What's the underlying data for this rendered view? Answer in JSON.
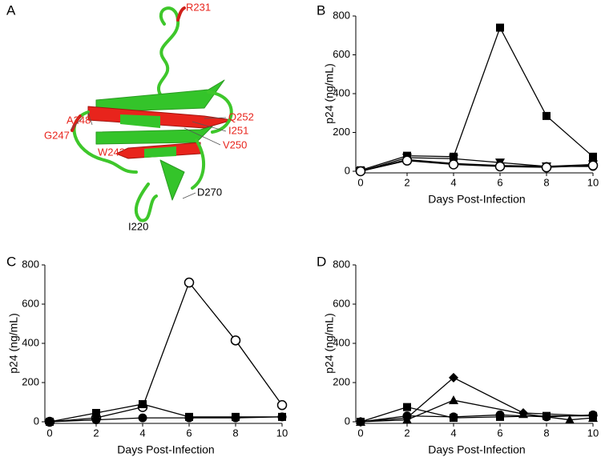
{
  "structure": {
    "panel_label": "A",
    "labels": [
      {
        "text": "R231",
        "color": "#e8241c"
      },
      {
        "text": "A248",
        "color": "#e8241c"
      },
      {
        "text": "G247",
        "color": "#e8241c"
      },
      {
        "text": "Q252",
        "color": "#e8241c"
      },
      {
        "text": "I251",
        "color": "#e8241c"
      },
      {
        "text": "W243",
        "color": "#e8241c"
      },
      {
        "text": "V250",
        "color": "#e8241c"
      },
      {
        "text": "D270",
        "color": "#000000"
      },
      {
        "text": "I220",
        "color": "#000000"
      }
    ]
  },
  "chart_data": [
    {
      "type": "line",
      "panel_label": "B",
      "xlabel": "Days Post-Infection",
      "ylabel": "p24 (ng/mL)",
      "xlim": [
        0,
        10
      ],
      "xticks": [
        0,
        2,
        4,
        6,
        8,
        10
      ],
      "ylim": [
        0,
        800
      ],
      "yticks": [
        0,
        200,
        400,
        600,
        800
      ],
      "series": [
        {
          "marker": "square",
          "color": "#000000",
          "x": [
            0,
            2,
            4,
            6,
            8,
            10
          ],
          "values": [
            5,
            80,
            75,
            740,
            285,
            75
          ]
        },
        {
          "marker": "triangle-down",
          "color": "#000000",
          "x": [
            0,
            2,
            4,
            6,
            8,
            10
          ],
          "values": [
            0,
            70,
            65,
            45,
            25,
            35
          ]
        },
        {
          "marker": "filled-circle",
          "color": "#000000",
          "x": [
            0,
            2,
            4,
            6,
            8,
            10
          ],
          "values": [
            0,
            60,
            40,
            30,
            25,
            25
          ]
        },
        {
          "marker": "open-circle",
          "color": "#000000",
          "x": [
            0,
            2,
            4,
            6,
            8,
            10
          ],
          "values": [
            0,
            55,
            35,
            25,
            20,
            30
          ]
        }
      ]
    },
    {
      "type": "line",
      "panel_label": "C",
      "xlabel": "Days Post-Infection",
      "ylabel": "p24 (ng/mL)",
      "xlim": [
        0,
        10
      ],
      "xticks": [
        0,
        2,
        4,
        6,
        8,
        10
      ],
      "ylim": [
        0,
        800
      ],
      "yticks": [
        0,
        200,
        400,
        600,
        800
      ],
      "series": [
        {
          "marker": "open-circle",
          "color": "#000000",
          "x": [
            0,
            2,
            4,
            6,
            8,
            10
          ],
          "values": [
            0,
            20,
            75,
            710,
            415,
            85
          ]
        },
        {
          "marker": "square",
          "color": "#000000",
          "x": [
            0,
            2,
            4,
            6,
            8,
            10
          ],
          "values": [
            0,
            45,
            90,
            25,
            25,
            25
          ]
        },
        {
          "marker": "filled-circle",
          "color": "#000000",
          "x": [
            0,
            2,
            4,
            6,
            8,
            10
          ],
          "values": [
            0,
            10,
            20,
            20,
            20,
            25
          ]
        }
      ]
    },
    {
      "type": "line",
      "panel_label": "D",
      "xlabel": "Days Post-Infection",
      "ylabel": "p24 (ng/mL)",
      "xlim": [
        0,
        10
      ],
      "xticks": [
        0,
        2,
        4,
        6,
        8,
        10
      ],
      "ylim": [
        0,
        800
      ],
      "yticks": [
        0,
        200,
        400,
        600,
        800
      ],
      "series": [
        {
          "marker": "diamond",
          "color": "#000000",
          "x": [
            0,
            2,
            4,
            7,
            10
          ],
          "values": [
            0,
            20,
            225,
            45,
            30
          ]
        },
        {
          "marker": "triangle-up",
          "color": "#000000",
          "x": [
            0,
            2,
            4,
            7,
            9,
            10
          ],
          "values": [
            0,
            10,
            110,
            40,
            10,
            20
          ]
        },
        {
          "marker": "square",
          "color": "#000000",
          "x": [
            0,
            2,
            4,
            6,
            8,
            10
          ],
          "values": [
            0,
            75,
            20,
            25,
            30,
            30
          ]
        },
        {
          "marker": "filled-circle",
          "color": "#000000",
          "x": [
            0,
            2,
            4,
            6,
            8,
            10
          ],
          "values": [
            0,
            30,
            25,
            35,
            25,
            35
          ]
        }
      ]
    }
  ]
}
